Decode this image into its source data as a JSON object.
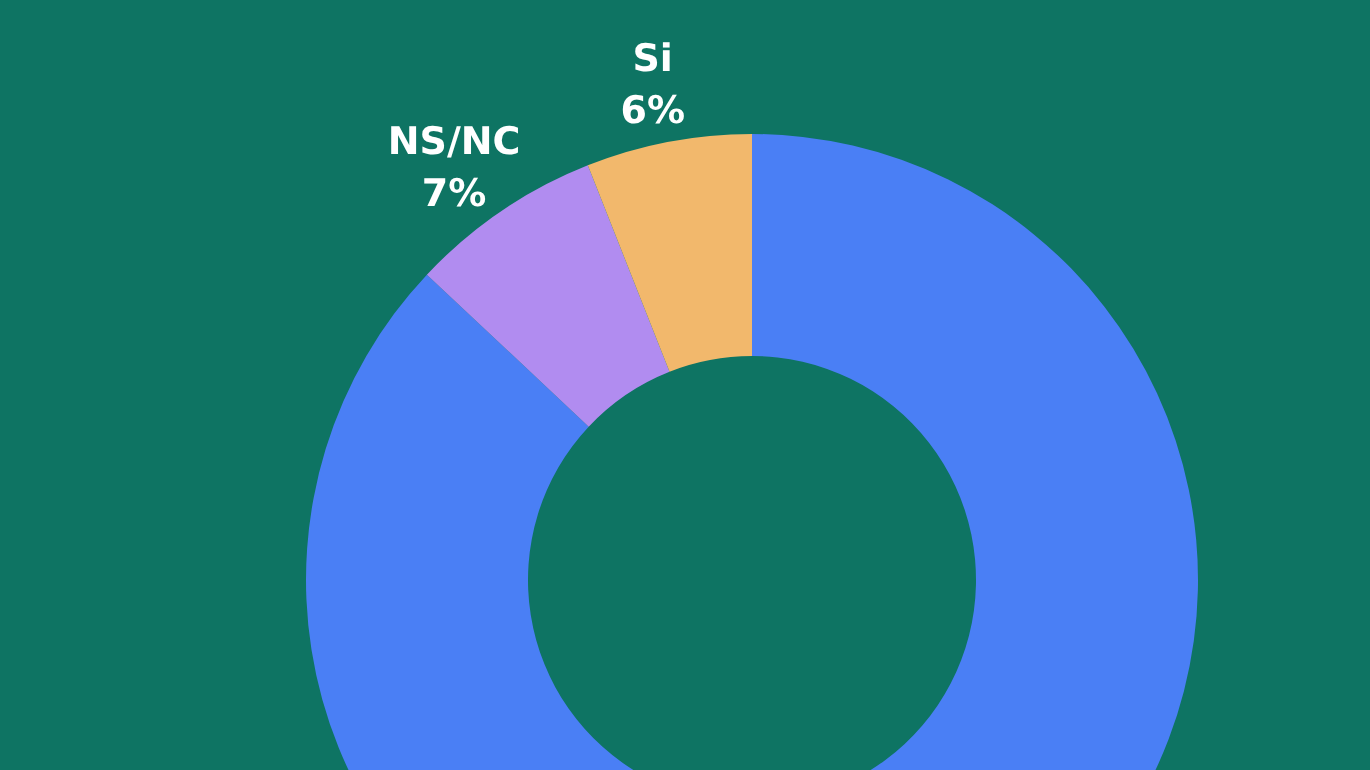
{
  "chart_data": {
    "type": "donut",
    "categories": [
      null,
      "NS/NC",
      "Si"
    ],
    "values": [
      87,
      7,
      6
    ],
    "value_labels": [
      null,
      "7%",
      "6%"
    ],
    "colors": [
      "#4a7ff5",
      "#b18cf0",
      "#f2b86c"
    ]
  }
}
